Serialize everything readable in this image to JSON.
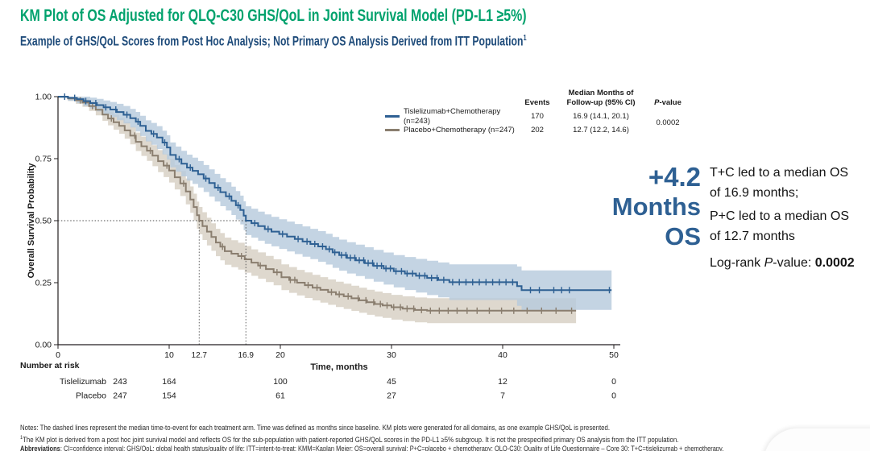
{
  "header": {
    "title": "KM Plot of OS Adjusted for QLQ-C30 GHS/QoL in Joint Survival Model (PD-L1 ≥5%)",
    "subtitle": "Example of GHS/QoL Scores from Post Hoc Analysis;  Not Primary OS Analysis Derived from ITT Population",
    "subtitle_sup": "1"
  },
  "colors": {
    "title_green": "#00A26D",
    "subtitle_navy": "#1E4B7A",
    "tis_line": "#2E6093",
    "tis_band": "#B7CADD",
    "pbo_line": "#8A7E6F",
    "pbo_band": "#DCD6CB",
    "risk_tis": "#3A74B8",
    "risk_pbo": "#8D8D88",
    "callout_blue": "#2E6093",
    "axis": "#231F20",
    "dashed": "#4D4D4D"
  },
  "chart_data": {
    "type": "line",
    "variant": "kaplan-meier-step",
    "title": "",
    "xlabel": "Time, months",
    "ylabel": "Overall Survival Probability",
    "xlim": [
      0,
      50.6
    ],
    "ylim": [
      0,
      1.0
    ],
    "xticks": [
      0,
      10,
      20,
      30,
      40,
      50
    ],
    "extra_xtick_labels": [
      12.7,
      16.9
    ],
    "yticks": [
      0.0,
      0.25,
      0.5,
      0.75,
      1.0
    ],
    "grid": false,
    "legend_position": "top-right-inside",
    "reference_lines": {
      "h": 0.5,
      "v": [
        12.7,
        16.9
      ]
    },
    "legend_headers": {
      "events": "Events",
      "median_line1": "Median Months of",
      "median_line2": "Follow-up (95% CI)",
      "p_italic": "P",
      "p_rest": "-value"
    },
    "p_value": "0.0002",
    "series": [
      {
        "name": "Tislelizumab+Chemotherapy (n=243)",
        "color": "#2E6093",
        "band_color": "#B7CADD",
        "events": "170",
        "median": "16.9 (14.1, 20.1)",
        "points": [
          [
            0,
            1.0
          ],
          [
            0.9,
            0.995
          ],
          [
            1.7,
            0.99
          ],
          [
            2.3,
            0.982
          ],
          [
            2.9,
            0.974
          ],
          [
            3.5,
            0.966
          ],
          [
            4.1,
            0.957
          ],
          [
            4.7,
            0.948
          ],
          [
            5.3,
            0.938
          ],
          [
            5.9,
            0.927
          ],
          [
            6.5,
            0.913
          ],
          [
            7.0,
            0.899
          ],
          [
            7.4,
            0.882
          ],
          [
            7.9,
            0.862
          ],
          [
            8.4,
            0.85
          ],
          [
            8.9,
            0.835
          ],
          [
            9.4,
            0.815
          ],
          [
            9.8,
            0.795
          ],
          [
            10.1,
            0.765
          ],
          [
            10.6,
            0.748
          ],
          [
            11.1,
            0.73
          ],
          [
            11.6,
            0.714
          ],
          [
            12.1,
            0.701
          ],
          [
            12.6,
            0.687
          ],
          [
            13.1,
            0.67
          ],
          [
            13.6,
            0.652
          ],
          [
            14.1,
            0.633
          ],
          [
            14.6,
            0.615
          ],
          [
            15.1,
            0.598
          ],
          [
            15.6,
            0.58
          ],
          [
            16.0,
            0.562
          ],
          [
            16.4,
            0.543
          ],
          [
            16.7,
            0.52
          ],
          [
            16.9,
            0.5
          ],
          [
            17.4,
            0.49
          ],
          [
            18.0,
            0.478
          ],
          [
            18.6,
            0.466
          ],
          [
            19.2,
            0.456
          ],
          [
            19.9,
            0.446
          ],
          [
            20.6,
            0.436
          ],
          [
            21.3,
            0.426
          ],
          [
            22.0,
            0.416
          ],
          [
            22.7,
            0.406
          ],
          [
            23.4,
            0.396
          ],
          [
            24.1,
            0.385
          ],
          [
            24.7,
            0.372
          ],
          [
            25.3,
            0.361
          ],
          [
            26.0,
            0.35
          ],
          [
            26.8,
            0.34
          ],
          [
            27.6,
            0.329
          ],
          [
            28.4,
            0.318
          ],
          [
            29.3,
            0.307
          ],
          [
            30.2,
            0.296
          ],
          [
            31.2,
            0.287
          ],
          [
            32.2,
            0.278
          ],
          [
            33.2,
            0.269
          ],
          [
            34.2,
            0.261
          ],
          [
            35.2,
            0.252
          ],
          [
            41.3,
            0.236
          ],
          [
            41.7,
            0.22
          ],
          [
            49.8,
            0.22
          ]
        ],
        "censors": [
          0.6,
          1.5,
          2.5,
          3.4,
          4.3,
          5.2,
          6.2,
          7.2,
          8.6,
          9.6,
          10.9,
          11.9,
          13.3,
          14.4,
          15.4,
          16.2,
          17.7,
          18.9,
          20.2,
          21.6,
          22.4,
          23.1,
          23.8,
          24.4,
          24.9,
          25.5,
          25.9,
          26.3,
          26.7,
          27.1,
          27.5,
          27.9,
          28.3,
          28.7,
          29.1,
          29.5,
          29.9,
          30.4,
          30.9,
          31.4,
          31.9,
          32.5,
          33.0,
          33.6,
          34.1,
          34.7,
          35.5,
          36.1,
          36.7,
          37.3,
          37.9,
          38.5,
          39.1,
          39.7,
          40.3,
          40.9,
          42.5,
          43.3,
          44.6,
          45.3,
          46.0,
          49.6
        ],
        "band_delta": [
          [
            0,
            0.006
          ],
          [
            2,
            0.018
          ],
          [
            5,
            0.032
          ],
          [
            10,
            0.05
          ],
          [
            15,
            0.057
          ],
          [
            20,
            0.06
          ],
          [
            30,
            0.065
          ],
          [
            40,
            0.078
          ],
          [
            50,
            0.088
          ]
        ]
      },
      {
        "name": "Placebo+Chemotherapy (n=247)",
        "color": "#8A7E6F",
        "band_color": "#DCD6CB",
        "events": "202",
        "median": "12.7 (12.2, 14.6)",
        "points": [
          [
            0,
            1.0
          ],
          [
            0.9,
            0.993
          ],
          [
            1.6,
            0.985
          ],
          [
            2.2,
            0.976
          ],
          [
            2.8,
            0.962
          ],
          [
            3.4,
            0.947
          ],
          [
            4.0,
            0.928
          ],
          [
            4.5,
            0.912
          ],
          [
            5.0,
            0.897
          ],
          [
            5.5,
            0.882
          ],
          [
            6.0,
            0.864
          ],
          [
            6.5,
            0.843
          ],
          [
            7.0,
            0.818
          ],
          [
            7.5,
            0.8
          ],
          [
            8.0,
            0.782
          ],
          [
            8.5,
            0.762
          ],
          [
            9.0,
            0.74
          ],
          [
            9.5,
            0.722
          ],
          [
            10.0,
            0.702
          ],
          [
            10.5,
            0.675
          ],
          [
            11.0,
            0.65
          ],
          [
            11.5,
            0.618
          ],
          [
            11.9,
            0.585
          ],
          [
            12.2,
            0.555
          ],
          [
            12.5,
            0.522
          ],
          [
            12.7,
            0.5
          ],
          [
            13.0,
            0.478
          ],
          [
            13.4,
            0.456
          ],
          [
            13.8,
            0.434
          ],
          [
            14.2,
            0.412
          ],
          [
            14.6,
            0.395
          ],
          [
            15.0,
            0.377
          ],
          [
            15.6,
            0.367
          ],
          [
            16.2,
            0.357
          ],
          [
            16.8,
            0.344
          ],
          [
            17.4,
            0.331
          ],
          [
            18.0,
            0.319
          ],
          [
            18.7,
            0.305
          ],
          [
            19.4,
            0.292
          ],
          [
            20.1,
            0.272
          ],
          [
            20.8,
            0.261
          ],
          [
            21.5,
            0.25
          ],
          [
            22.2,
            0.24
          ],
          [
            22.9,
            0.23
          ],
          [
            23.6,
            0.221
          ],
          [
            24.3,
            0.212
          ],
          [
            25.0,
            0.203
          ],
          [
            25.7,
            0.195
          ],
          [
            26.4,
            0.187
          ],
          [
            27.1,
            0.179
          ],
          [
            27.8,
            0.171
          ],
          [
            28.5,
            0.164
          ],
          [
            29.2,
            0.158
          ],
          [
            30.0,
            0.151
          ],
          [
            31.0,
            0.145
          ],
          [
            32.1,
            0.14
          ],
          [
            33.2,
            0.137
          ],
          [
            46.6,
            0.137
          ]
        ],
        "censors": [
          2.0,
          3.1,
          4.8,
          6.9,
          8.3,
          9.8,
          11.3,
          14.8,
          16.5,
          18.2,
          19.7,
          20.9,
          21.3,
          22.5,
          23.3,
          24.6,
          25.3,
          26.1,
          27.0,
          27.7,
          28.4,
          29.0,
          29.6,
          30.2,
          30.8,
          31.4,
          32.0,
          32.7,
          33.5,
          34.3,
          35.1,
          35.9,
          36.8,
          37.7,
          38.8,
          39.9,
          41.0,
          42.2,
          43.5,
          44.8,
          46.2
        ],
        "band_delta": [
          [
            0,
            0.006
          ],
          [
            2,
            0.016
          ],
          [
            5,
            0.03
          ],
          [
            10,
            0.048
          ],
          [
            13,
            0.056
          ],
          [
            20,
            0.052
          ],
          [
            30,
            0.05
          ],
          [
            40,
            0.051
          ],
          [
            47,
            0.056
          ]
        ]
      }
    ],
    "risk_table": {
      "title": "Number at risk",
      "times": [
        0,
        10,
        20,
        30,
        40,
        50
      ],
      "rows": [
        {
          "label": "Tislelizumab",
          "label_color": "#3A74B8",
          "values": [
            243,
            164,
            100,
            45,
            12,
            0
          ]
        },
        {
          "label": "Placebo",
          "label_color": "#8D8D88",
          "values": [
            247,
            154,
            61,
            27,
            7,
            0
          ]
        }
      ]
    }
  },
  "callout": {
    "value": "+4.2",
    "months_label": "Months",
    "os_label": "OS",
    "t_line1": "T+C led to a median OS",
    "t_line2": "of 16.9 months;",
    "p_line1": "P+C led to a median OS",
    "p_line2": "of 12.7 months",
    "logrank_prefix": "Log-rank ",
    "logrank_p": "P",
    "logrank_suffix": "-value: ",
    "logrank_value": "0.0002"
  },
  "footnotes": {
    "line1": "Notes: The dashed lines represent the median time-to-event for each treatment arm. Time was defined as months since baseline. KM plots were generated for all domains, as one example GHS/QoL is presented.",
    "line2_sup": "1",
    "line2": "The KM plot is derived from a post hoc joint survival model and reflects OS for the sub-population with patient-reported GHS/QoL scores in the PD-L1 ≥5% subgroup. It is not the prespecified primary OS analysis from the ITT population.",
    "line3_bold": "Abbreviations",
    "line3": ": CI=confidence interval; GHS/QoL: global health status/quality of life; ITT=intent-to-treat; KMM=Kaplan Meier; OS=overall survival; P+C=placebo + chemotherapy; QLQ-C30: Quality of Life Questionnaire – Core 30; T+C=tislelizumab + chemotherapy."
  }
}
